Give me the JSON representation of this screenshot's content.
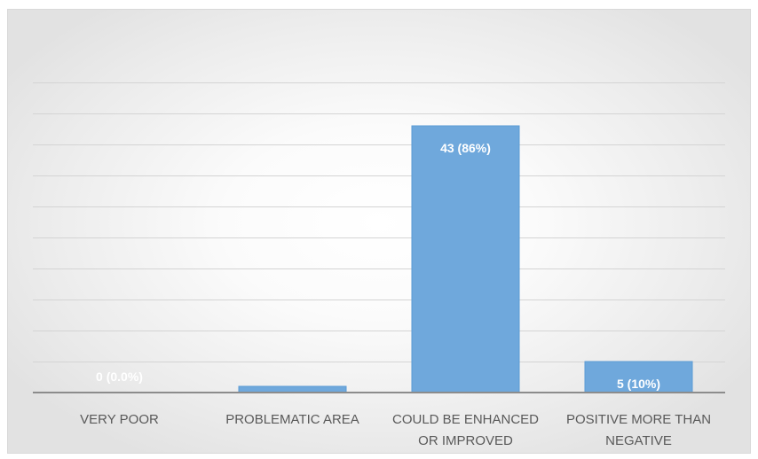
{
  "chart_data": {
    "type": "bar",
    "title": "",
    "xlabel": "",
    "ylabel": "",
    "categories": [
      [
        "VERY POOR"
      ],
      [
        "PROBLEMATIC AREA"
      ],
      [
        "COULD BE ENHANCED",
        "OR IMPROVED"
      ],
      [
        "POSITIVE MORE THAN",
        "NEGATIVE"
      ]
    ],
    "values": [
      0,
      1,
      43,
      5
    ],
    "data_labels": [
      "0 (0.0%)",
      "",
      "43 (86%)",
      "5 (10%)"
    ],
    "ylim": [
      0,
      50
    ],
    "grid": true,
    "legend": "none",
    "colors": {
      "bar": "#6fa8dc",
      "label": "#ffffff",
      "axis_text": "#595959"
    }
  }
}
